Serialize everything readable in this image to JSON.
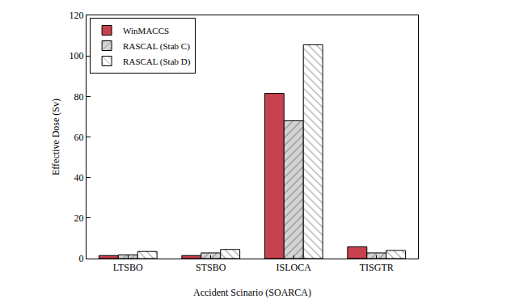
{
  "chart_data": {
    "type": "bar",
    "x_label": "Accident Scinario (SOARCA)",
    "y_label": "Effective Dose (Sv)",
    "categories": [
      "LTSBO",
      "STSBO",
      "ISLOCA",
      "TISGTR"
    ],
    "series": [
      {
        "name": "WinMACCS",
        "color": "#c8414f",
        "values": [
          1.5,
          1.5,
          81.5,
          5.8
        ]
      },
      {
        "name": "RASCAL (Stab C)",
        "color": "#d4d4d4",
        "values": [
          1.8,
          2.8,
          68,
          2.8
        ]
      },
      {
        "name": "RASCAL (Stab D)",
        "color": "#ffffff",
        "values": [
          3.5,
          4.5,
          105.5,
          4.0
        ]
      }
    ],
    "ylim": [
      0,
      120
    ],
    "yticks": [
      0,
      20,
      40,
      60,
      80,
      100,
      120
    ],
    "grid": false,
    "legend": "upper left"
  }
}
